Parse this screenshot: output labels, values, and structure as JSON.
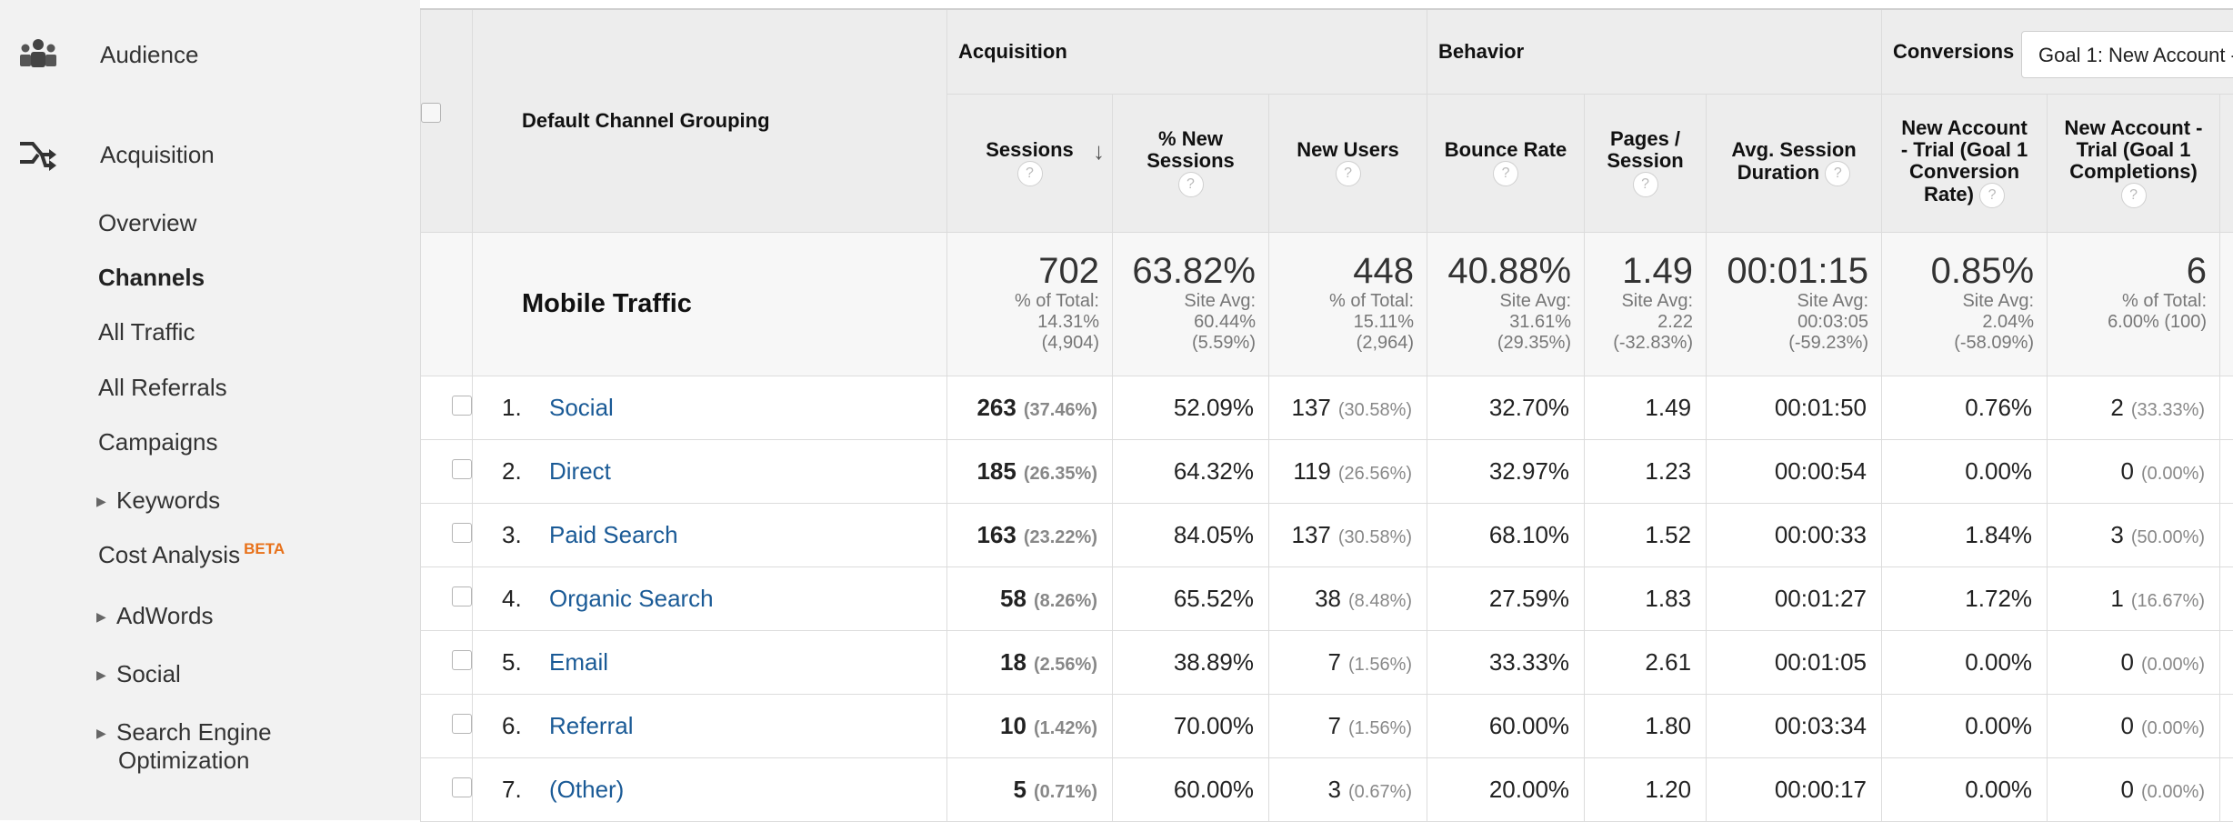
{
  "sidebar": {
    "audience": "Audience",
    "acquisition": "Acquisition",
    "items": {
      "overview": "Overview",
      "channels": "Channels",
      "all_traffic": "All Traffic",
      "all_referrals": "All Referrals",
      "campaigns": "Campaigns",
      "keywords": "Keywords",
      "cost_analysis": "Cost Analysis",
      "cost_analysis_badge": "BETA",
      "adwords": "AdWords",
      "social": "Social",
      "seo_line1": "Search Engine",
      "seo_line2": "Optimization"
    }
  },
  "groups": {
    "acquisition": "Acquisition",
    "behavior": "Behavior",
    "conversions": "Conversions",
    "goal_select": "Goal 1: New Account -"
  },
  "columns": {
    "dimension": "Default Channel Grouping",
    "sessions": "Sessions",
    "new_sessions_1": "% New",
    "new_sessions_2": "Sessions",
    "new_users": "New Users",
    "bounce_rate": "Bounce Rate",
    "pages_1": "Pages /",
    "pages_2": "Session",
    "duration_1": "Avg. Session",
    "duration_2": "Duration",
    "conv_rate_1": "New Account",
    "conv_rate_2": "- Trial (Goal 1",
    "conv_rate_3": "Conversion",
    "conv_rate_4": "Rate)",
    "completions_1": "New Account -",
    "completions_2": "Trial (Goal 1",
    "completions_3": "Completions)",
    "help": "?"
  },
  "summary": {
    "label": "Mobile Traffic",
    "sessions": {
      "value": "702",
      "l1": "% of Total:",
      "l2": "14.31%",
      "l3": "(4,904)"
    },
    "new_sessions": {
      "value": "63.82%",
      "l1": "Site Avg:",
      "l2": "60.44%",
      "l3": "(5.59%)"
    },
    "new_users": {
      "value": "448",
      "l1": "% of Total:",
      "l2": "15.11%",
      "l3": "(2,964)"
    },
    "bounce_rate": {
      "value": "40.88%",
      "l1": "Site Avg:",
      "l2": "31.61%",
      "l3": "(29.35%)"
    },
    "pages": {
      "value": "1.49",
      "l1": "Site Avg:",
      "l2": "2.22",
      "l3": "(-32.83%)"
    },
    "duration": {
      "value": "00:01:15",
      "l1": "Site Avg:",
      "l2": "00:03:05",
      "l3": "(-59.23%)"
    },
    "conv_rate": {
      "value": "0.85%",
      "l1": "Site Avg:",
      "l2": "2.04%",
      "l3": "(-58.09%)"
    },
    "completions": {
      "value": "6",
      "l1": "% of Total:",
      "l2": "6.00% (100)"
    }
  },
  "rows": [
    {
      "idx": "1.",
      "name": "Social",
      "sessions": "263",
      "sessions_pct": "(37.46%)",
      "new_sessions": "52.09%",
      "new_users": "137",
      "new_users_pct": "(30.58%)",
      "bounce": "32.70%",
      "pages": "1.49",
      "duration": "00:01:50",
      "conv_rate": "0.76%",
      "completions": "2",
      "completions_pct": "(33.33%)"
    },
    {
      "idx": "2.",
      "name": "Direct",
      "sessions": "185",
      "sessions_pct": "(26.35%)",
      "new_sessions": "64.32%",
      "new_users": "119",
      "new_users_pct": "(26.56%)",
      "bounce": "32.97%",
      "pages": "1.23",
      "duration": "00:00:54",
      "conv_rate": "0.00%",
      "completions": "0",
      "completions_pct": "(0.00%)"
    },
    {
      "idx": "3.",
      "name": "Paid Search",
      "sessions": "163",
      "sessions_pct": "(23.22%)",
      "new_sessions": "84.05%",
      "new_users": "137",
      "new_users_pct": "(30.58%)",
      "bounce": "68.10%",
      "pages": "1.52",
      "duration": "00:00:33",
      "conv_rate": "1.84%",
      "completions": "3",
      "completions_pct": "(50.00%)"
    },
    {
      "idx": "4.",
      "name": "Organic Search",
      "sessions": "58",
      "sessions_pct": "(8.26%)",
      "new_sessions": "65.52%",
      "new_users": "38",
      "new_users_pct": "(8.48%)",
      "bounce": "27.59%",
      "pages": "1.83",
      "duration": "00:01:27",
      "conv_rate": "1.72%",
      "completions": "1",
      "completions_pct": "(16.67%)"
    },
    {
      "idx": "5.",
      "name": "Email",
      "sessions": "18",
      "sessions_pct": "(2.56%)",
      "new_sessions": "38.89%",
      "new_users": "7",
      "new_users_pct": "(1.56%)",
      "bounce": "33.33%",
      "pages": "2.61",
      "duration": "00:01:05",
      "conv_rate": "0.00%",
      "completions": "0",
      "completions_pct": "(0.00%)"
    },
    {
      "idx": "6.",
      "name": "Referral",
      "sessions": "10",
      "sessions_pct": "(1.42%)",
      "new_sessions": "70.00%",
      "new_users": "7",
      "new_users_pct": "(1.56%)",
      "bounce": "60.00%",
      "pages": "1.80",
      "duration": "00:03:34",
      "conv_rate": "0.00%",
      "completions": "0",
      "completions_pct": "(0.00%)"
    },
    {
      "idx": "7.",
      "name": "(Other)",
      "sessions": "5",
      "sessions_pct": "(0.71%)",
      "new_sessions": "60.00%",
      "new_users": "3",
      "new_users_pct": "(0.67%)",
      "bounce": "20.00%",
      "pages": "1.20",
      "duration": "00:00:17",
      "conv_rate": "0.00%",
      "completions": "0",
      "completions_pct": "(0.00%)"
    }
  ],
  "colors": {
    "link": "#1a5a96",
    "beta": "#e8711a",
    "sidebar_bg": "#f2f2f2",
    "header_bg": "#ededed"
  }
}
